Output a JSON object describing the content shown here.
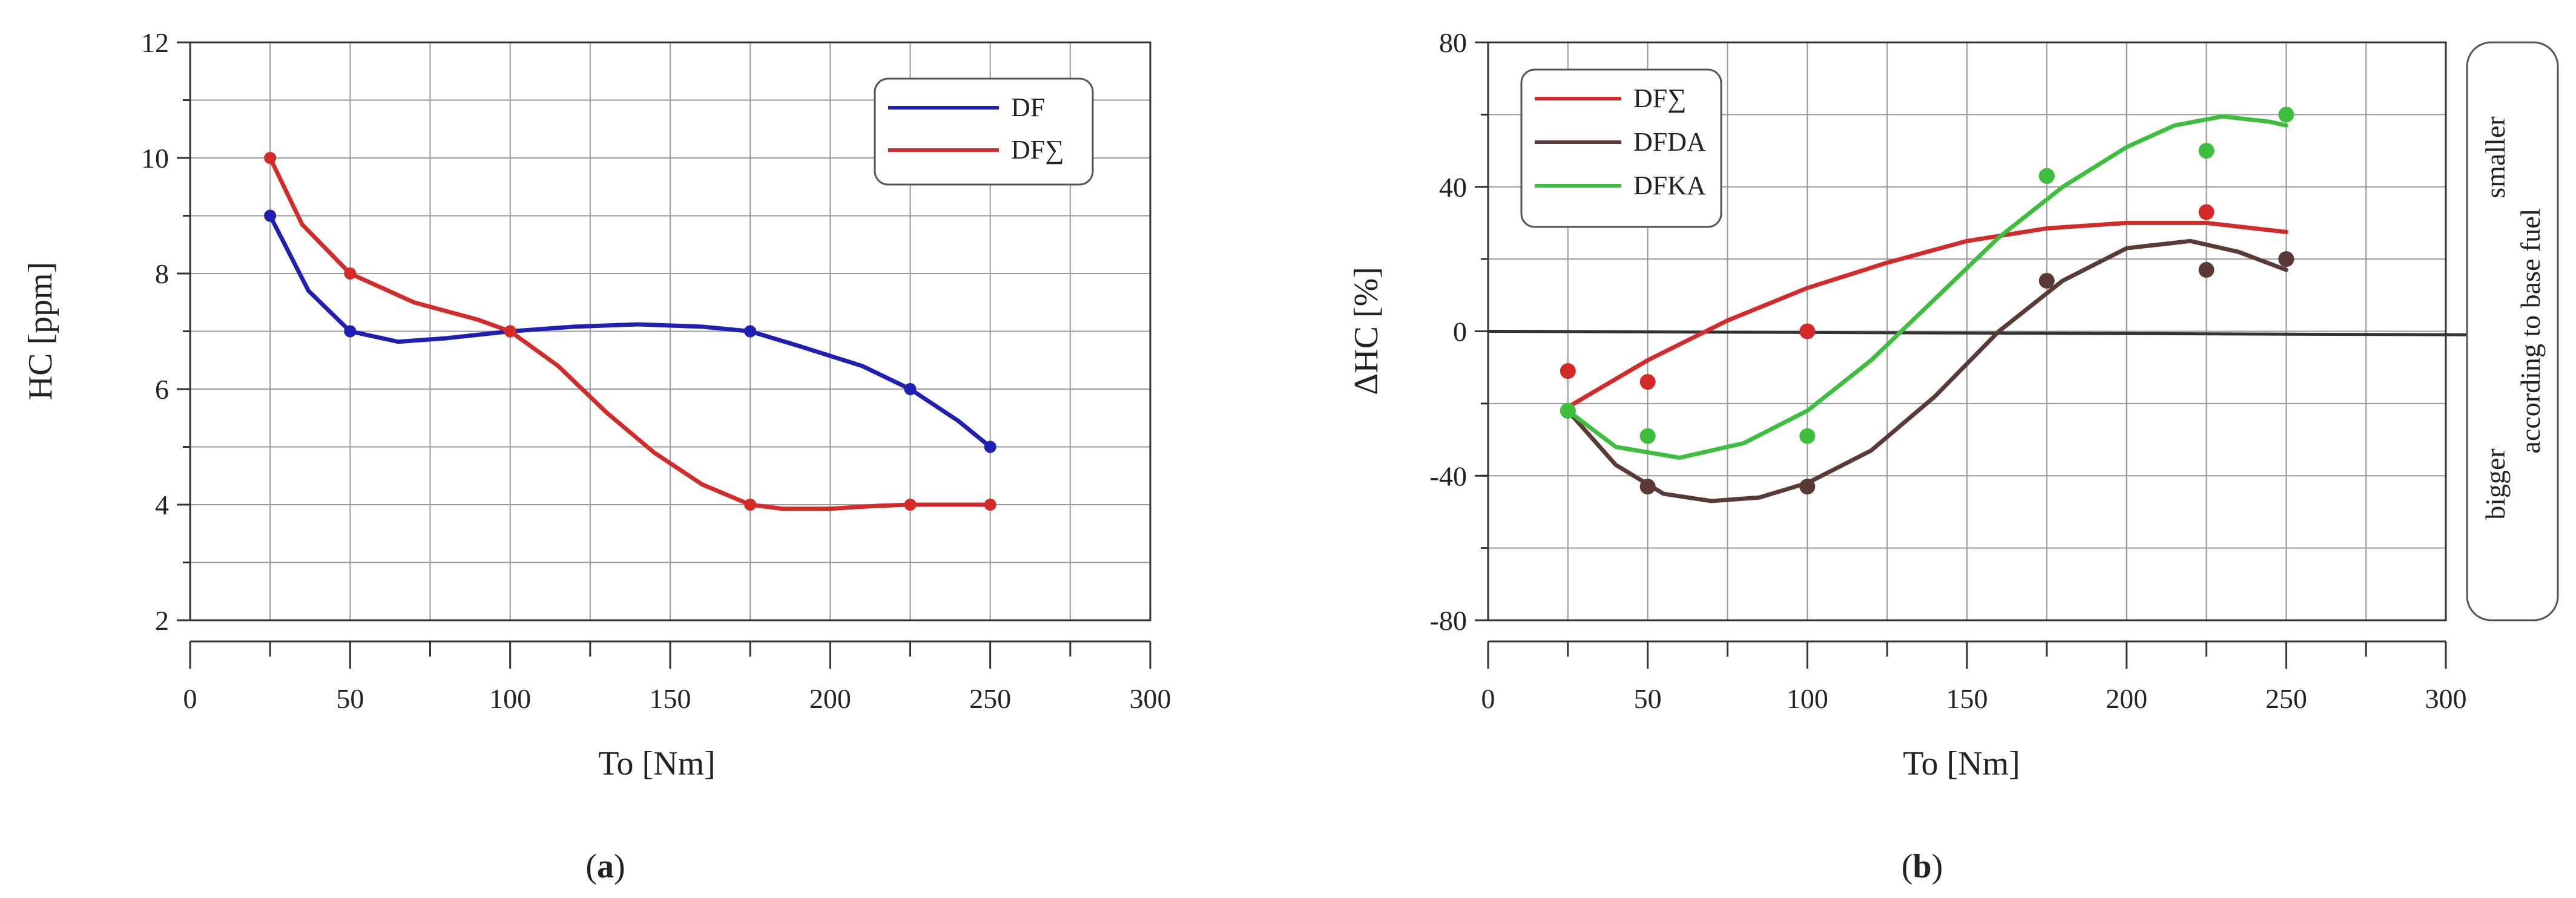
{
  "chart_data": [
    {
      "type": "line",
      "panel_label": "(a)",
      "title": "",
      "xlabel": "To [Nm]",
      "ylabel": "HC [ppm]",
      "xlim": [
        0,
        300
      ],
      "ylim": [
        2,
        12
      ],
      "x_ticks": [
        0,
        50,
        100,
        150,
        200,
        250,
        300
      ],
      "y_ticks": [
        2,
        4,
        6,
        8,
        10,
        12
      ],
      "grid": true,
      "legend_position": "top-right",
      "series": [
        {
          "name": "DF",
          "color": "#1f1fb4",
          "x": [
            25,
            50,
            100,
            175,
            225,
            250
          ],
          "y": [
            9,
            7,
            7,
            7,
            6,
            5
          ],
          "curve": [
            [
              25,
              9
            ],
            [
              37,
              7.7
            ],
            [
              50,
              7
            ],
            [
              65,
              6.82
            ],
            [
              80,
              6.88
            ],
            [
              100,
              7
            ],
            [
              120,
              7.08
            ],
            [
              140,
              7.12
            ],
            [
              160,
              7.08
            ],
            [
              175,
              7
            ],
            [
              190,
              6.75
            ],
            [
              210,
              6.4
            ],
            [
              225,
              6
            ],
            [
              240,
              5.45
            ],
            [
              250,
              5
            ]
          ]
        },
        {
          "name": "DF∑",
          "color": "#d42a2a",
          "x": [
            25,
            50,
            100,
            175,
            225,
            250
          ],
          "y": [
            10,
            8,
            7,
            4,
            4,
            4
          ],
          "curve": [
            [
              25,
              10
            ],
            [
              35,
              8.85
            ],
            [
              50,
              8
            ],
            [
              70,
              7.5
            ],
            [
              90,
              7.2
            ],
            [
              100,
              7
            ],
            [
              115,
              6.4
            ],
            [
              130,
              5.6
            ],
            [
              145,
              4.9
            ],
            [
              160,
              4.35
            ],
            [
              175,
              4
            ],
            [
              185,
              3.93
            ],
            [
              200,
              3.93
            ],
            [
              215,
              3.98
            ],
            [
              225,
              4
            ],
            [
              250,
              4
            ]
          ]
        }
      ]
    },
    {
      "type": "scatter",
      "panel_label": "(b)",
      "title": "",
      "xlabel": "To [Nm]",
      "ylabel": "ΔHC [%]",
      "xlim": [
        0,
        300
      ],
      "ylim": [
        -80,
        80
      ],
      "x_ticks": [
        0,
        50,
        100,
        150,
        200,
        250,
        300
      ],
      "y_ticks": [
        -80,
        -40,
        0,
        40,
        80
      ],
      "grid": true,
      "legend_position": "top-left",
      "annotation_top": "smaller",
      "annotation_bottom": "bigger",
      "annotation_side": "according to base fuel",
      "series": [
        {
          "name": "DF∑",
          "color": "#d42a2a",
          "x": [
            25,
            50,
            100,
            175,
            225,
            250
          ],
          "y": [
            -11,
            -14,
            0,
            43,
            33,
            20
          ],
          "curve": [
            [
              25,
              -21
            ],
            [
              50,
              -8
            ],
            [
              75,
              3
            ],
            [
              100,
              12
            ],
            [
              125,
              19
            ],
            [
              150,
              25
            ],
            [
              175,
              28.5
            ],
            [
              200,
              30
            ],
            [
              225,
              30
            ],
            [
              250,
              27.5
            ]
          ]
        },
        {
          "name": "DFDA",
          "color": "#5a3a36",
          "x": [
            25,
            50,
            100,
            175,
            225,
            250
          ],
          "y": [
            -22,
            -43,
            -43,
            14,
            17,
            20
          ],
          "curve": [
            [
              25,
              -22
            ],
            [
              40,
              -37
            ],
            [
              55,
              -45
            ],
            [
              70,
              -47
            ],
            [
              85,
              -46
            ],
            [
              100,
              -42
            ],
            [
              120,
              -33
            ],
            [
              140,
              -18
            ],
            [
              160,
              0
            ],
            [
              180,
              14
            ],
            [
              200,
              23
            ],
            [
              220,
              25
            ],
            [
              235,
              22
            ],
            [
              250,
              17
            ]
          ]
        },
        {
          "name": "DFKA",
          "color": "#3dbf3d",
          "x": [
            25,
            50,
            100,
            175,
            225,
            250
          ],
          "y": [
            -22,
            -29,
            -29,
            43,
            50,
            60
          ],
          "curve": [
            [
              25,
              -22
            ],
            [
              40,
              -32
            ],
            [
              60,
              -35
            ],
            [
              80,
              -31
            ],
            [
              100,
              -22
            ],
            [
              120,
              -8
            ],
            [
              140,
              9
            ],
            [
              160,
              26
            ],
            [
              180,
              40
            ],
            [
              200,
              51
            ],
            [
              215,
              57
            ],
            [
              230,
              59.5
            ],
            [
              245,
              58
            ],
            [
              250,
              57
            ]
          ]
        }
      ],
      "reference_line_y": 0
    }
  ]
}
